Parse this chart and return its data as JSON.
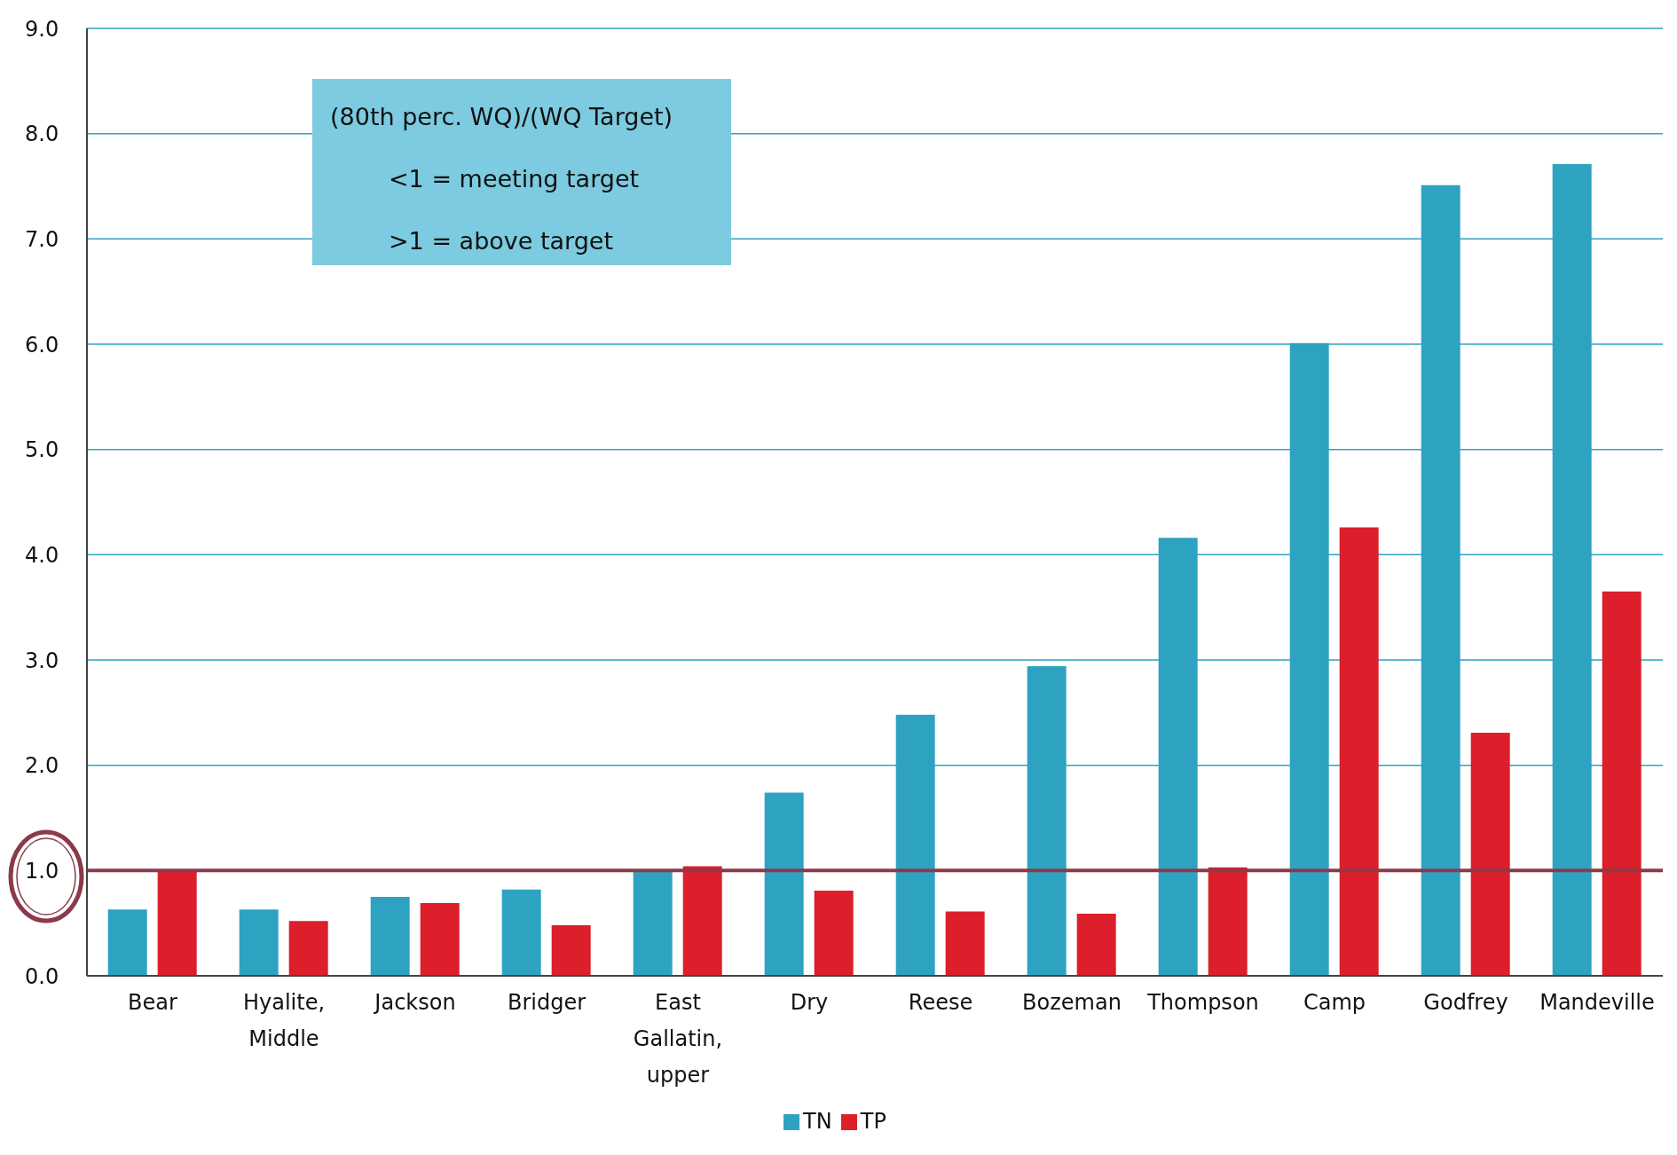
{
  "chart_data": {
    "type": "bar",
    "categories": [
      "Bear",
      "Hyalite, Middle",
      "Jackson",
      "Bridger",
      "East Gallatin, upper",
      "Dry",
      "Reese",
      "Bozeman",
      "Thompson",
      "Camp",
      "Godfrey",
      "Mandeville"
    ],
    "series": [
      {
        "name": "TN",
        "color": "#2ea3c1",
        "values": [
          0.63,
          0.63,
          0.75,
          0.82,
          0.99,
          1.74,
          2.48,
          2.94,
          4.16,
          6.01,
          7.51,
          7.71
        ]
      },
      {
        "name": "TP",
        "color": "#dc1f2a",
        "values": [
          0.99,
          0.52,
          0.69,
          0.48,
          1.04,
          0.81,
          0.61,
          0.59,
          1.03,
          4.26,
          2.31,
          3.65
        ]
      }
    ],
    "ylim": [
      0,
      9
    ],
    "yticks": [
      {
        "value": 0,
        "label": "0.0"
      },
      {
        "value": 1,
        "label": "1.0"
      },
      {
        "value": 2,
        "label": "2.0"
      },
      {
        "value": 3,
        "label": "3.0"
      },
      {
        "value": 4,
        "label": "4.0"
      },
      {
        "value": 5,
        "label": "5.0"
      },
      {
        "value": 6,
        "label": "6.0"
      },
      {
        "value": 7,
        "label": "7.0"
      },
      {
        "value": 8,
        "label": "8.0"
      },
      {
        "value": 9,
        "label": "9.0"
      }
    ],
    "grid": "y",
    "legend": "bottom",
    "ref_lines": [
      {
        "axis": "y",
        "value": 1,
        "color": "#8b3a4a"
      }
    ],
    "annotations": [
      "(80th perc. WQ)/(WQ Target)",
      "<1 = meeting target",
      ">1 = above target"
    ]
  }
}
